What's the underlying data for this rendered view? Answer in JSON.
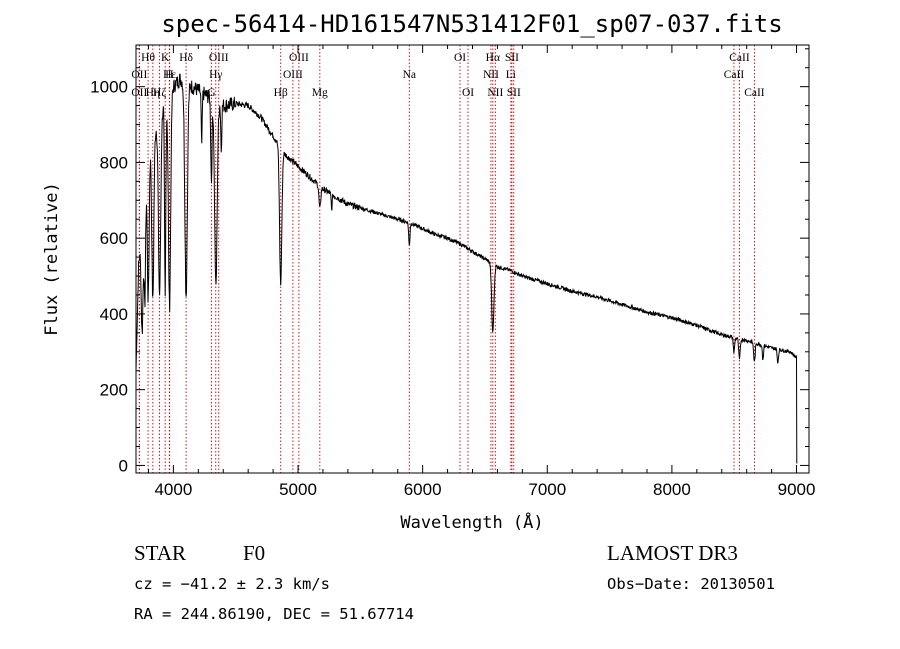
{
  "chart_data": {
    "type": "line",
    "title": "spec-56414-HD161547N531412F01_sp07-037.fits",
    "xlabel": "Wavelength (Å)",
    "ylabel": "Flux (relative)",
    "xlim": [
      3700,
      9100
    ],
    "ylim": [
      -20,
      1110
    ],
    "xticks": [
      4000,
      5000,
      6000,
      7000,
      8000,
      9000
    ],
    "yticks": [
      0,
      200,
      400,
      600,
      800,
      1000
    ],
    "xtick_labels": [
      "4000",
      "5000",
      "6000",
      "7000",
      "8000",
      "9000"
    ],
    "ytick_labels": [
      "0",
      "200",
      "400",
      "600",
      "800",
      "1000"
    ],
    "grid": false,
    "spectrum_continuum": [
      [
        3700,
        250
      ],
      [
        3720,
        520
      ],
      [
        3760,
        700
      ],
      [
        3800,
        820
      ],
      [
        3850,
        880
      ],
      [
        3900,
        930
      ],
      [
        3950,
        970
      ],
      [
        4000,
        1000
      ],
      [
        4050,
        1020
      ],
      [
        4100,
        1010
      ],
      [
        4150,
        1000
      ],
      [
        4200,
        990
      ],
      [
        4300,
        970
      ],
      [
        4400,
        950
      ],
      [
        4500,
        955
      ],
      [
        4600,
        950
      ],
      [
        4700,
        920
      ],
      [
        4800,
        870
      ],
      [
        4900,
        820
      ],
      [
        5000,
        790
      ],
      [
        5100,
        760
      ],
      [
        5200,
        730
      ],
      [
        5300,
        710
      ],
      [
        5400,
        690
      ],
      [
        5500,
        680
      ],
      [
        5600,
        670
      ],
      [
        5700,
        660
      ],
      [
        5800,
        650
      ],
      [
        5900,
        640
      ],
      [
        6000,
        625
      ],
      [
        6100,
        610
      ],
      [
        6200,
        600
      ],
      [
        6300,
        585
      ],
      [
        6400,
        565
      ],
      [
        6500,
        545
      ],
      [
        6600,
        525
      ],
      [
        6700,
        515
      ],
      [
        6800,
        500
      ],
      [
        6900,
        490
      ],
      [
        7000,
        480
      ],
      [
        7200,
        460
      ],
      [
        7400,
        445
      ],
      [
        7600,
        425
      ],
      [
        7800,
        405
      ],
      [
        8000,
        390
      ],
      [
        8200,
        370
      ],
      [
        8400,
        345
      ],
      [
        8600,
        330
      ],
      [
        8800,
        310
      ],
      [
        8950,
        300
      ],
      [
        9000,
        285
      ]
    ],
    "spectrum_absorptions": [
      {
        "center": 3750,
        "width": 8,
        "depth": 300
      },
      {
        "center": 3771,
        "width": 6,
        "depth": 300
      },
      {
        "center": 3798,
        "width": 7,
        "depth": 380
      },
      {
        "center": 3835,
        "width": 8,
        "depth": 430
      },
      {
        "center": 3889,
        "width": 9,
        "depth": 470
      },
      {
        "center": 3934,
        "width": 5,
        "depth": 520
      },
      {
        "center": 3969,
        "width": 9,
        "depth": 560
      },
      {
        "center": 4102,
        "width": 10,
        "depth": 560
      },
      {
        "center": 4227,
        "width": 4,
        "depth": 140
      },
      {
        "center": 4305,
        "width": 5,
        "depth": 220
      },
      {
        "center": 4341,
        "width": 10,
        "depth": 490
      },
      {
        "center": 4384,
        "width": 4,
        "depth": 120
      },
      {
        "center": 4861,
        "width": 9,
        "depth": 360
      },
      {
        "center": 5175,
        "width": 7,
        "depth": 60
      },
      {
        "center": 5270,
        "width": 4,
        "depth": 40
      },
      {
        "center": 5893,
        "width": 5,
        "depth": 60
      },
      {
        "center": 6563,
        "width": 9,
        "depth": 180
      },
      {
        "center": 8498,
        "width": 5,
        "depth": 40
      },
      {
        "center": 8542,
        "width": 6,
        "depth": 55
      },
      {
        "center": 8662,
        "width": 6,
        "depth": 50
      },
      {
        "center": 8730,
        "width": 4,
        "depth": 40
      },
      {
        "center": 8850,
        "width": 5,
        "depth": 35
      }
    ],
    "spectrum_tail": [
      [
        9000,
        285
      ],
      [
        9002,
        5
      ]
    ],
    "line_markers": [
      {
        "label": "Hθ",
        "wavelength": 3797,
        "row": 1
      },
      {
        "label": "K",
        "wavelength": 3934,
        "row": 1
      },
      {
        "label": "Hδ",
        "wavelength": 4102,
        "row": 1
      },
      {
        "label": "OII",
        "wavelength": 3727,
        "row": 2
      },
      {
        "label": "Hε",
        "wavelength": 3970,
        "row": 2
      },
      {
        "label": "OII",
        "wavelength": 3727,
        "row": 3
      },
      {
        "label": "Hη",
        "wavelength": 3835,
        "row": 3
      },
      {
        "label": "Hζ",
        "wavelength": 3889,
        "row": 3
      },
      {
        "label": "H",
        "wavelength": 3968,
        "row": 2
      },
      {
        "label": "OIII",
        "wavelength": 4364,
        "row": 1
      },
      {
        "label": "Hγ",
        "wavelength": 4340,
        "row": 2
      },
      {
        "label": "G",
        "wavelength": 4305,
        "row": 3
      },
      {
        "label": "OIII",
        "wavelength": 5007,
        "row": 1
      },
      {
        "label": "OIII",
        "wavelength": 4959,
        "row": 2
      },
      {
        "label": "Hβ",
        "wavelength": 4861,
        "row": 3
      },
      {
        "label": "Mg",
        "wavelength": 5175,
        "row": 3
      },
      {
        "label": "Na",
        "wavelength": 5893,
        "row": 2
      },
      {
        "label": "OI",
        "wavelength": 6300,
        "row": 1
      },
      {
        "label": "OI",
        "wavelength": 6364,
        "row": 3
      },
      {
        "label": "Hα",
        "wavelength": 6563,
        "row": 1
      },
      {
        "label": "SII",
        "wavelength": 6716,
        "row": 1
      },
      {
        "label": "NII",
        "wavelength": 6548,
        "row": 2
      },
      {
        "label": "Li",
        "wavelength": 6708,
        "row": 2
      },
      {
        "label": "NII",
        "wavelength": 6583,
        "row": 3
      },
      {
        "label": "SII",
        "wavelength": 6731,
        "row": 3
      },
      {
        "label": "CaII",
        "wavelength": 8542,
        "row": 1
      },
      {
        "label": "CaII",
        "wavelength": 8498,
        "row": 2
      },
      {
        "label": "CaII",
        "wavelength": 8662,
        "row": 3
      }
    ],
    "marker_color": "#cc0000",
    "line_color": "#000000"
  },
  "footer": {
    "class_label": "STAR",
    "subclass": "F0",
    "survey": "LAMOST DR3",
    "cz_line": "cz = −41.2 ± 2.3 km/s",
    "obs_date": "Obs−Date: 20130501",
    "coords": "RA = 244.86190, DEC =  51.67714"
  }
}
